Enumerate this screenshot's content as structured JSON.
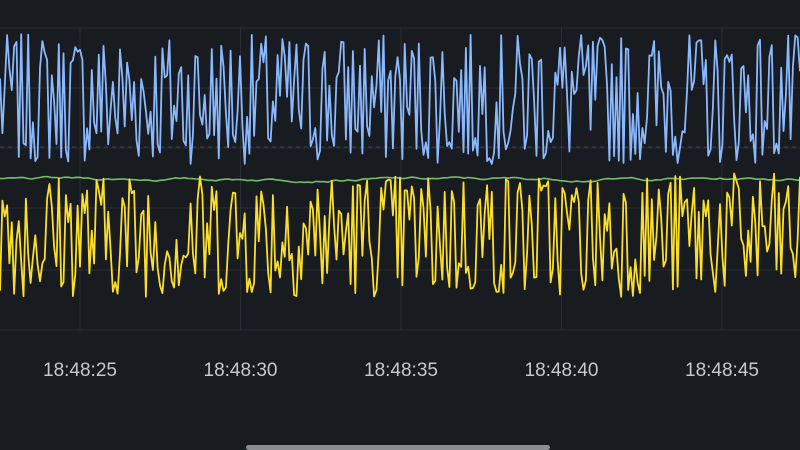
{
  "chart_data": {
    "type": "line",
    "title": "",
    "xlabel": "",
    "ylabel": "",
    "x_ticks": [
      "18:48:25",
      "18:48:30",
      "18:48:35",
      "18:48:40",
      "18:48:45"
    ],
    "x_range_seconds": {
      "start": "18:48:22.6",
      "end": "18:48:47.6"
    },
    "grid": true,
    "legend": "none",
    "series": [
      {
        "color": "#8ab8ff",
        "style": "noisy",
        "min": 0.55,
        "max": 0.98
      },
      {
        "color": "#73bf69",
        "style": "smooth",
        "level": 0.5,
        "variation": 0.012
      },
      {
        "color": "#fade2a",
        "style": "noisy",
        "min": 0.11,
        "max": 0.52
      }
    ]
  },
  "colors": {
    "background": "#181b1f",
    "grid": "#2a2d33",
    "tick_text": "#c7c7cc"
  }
}
